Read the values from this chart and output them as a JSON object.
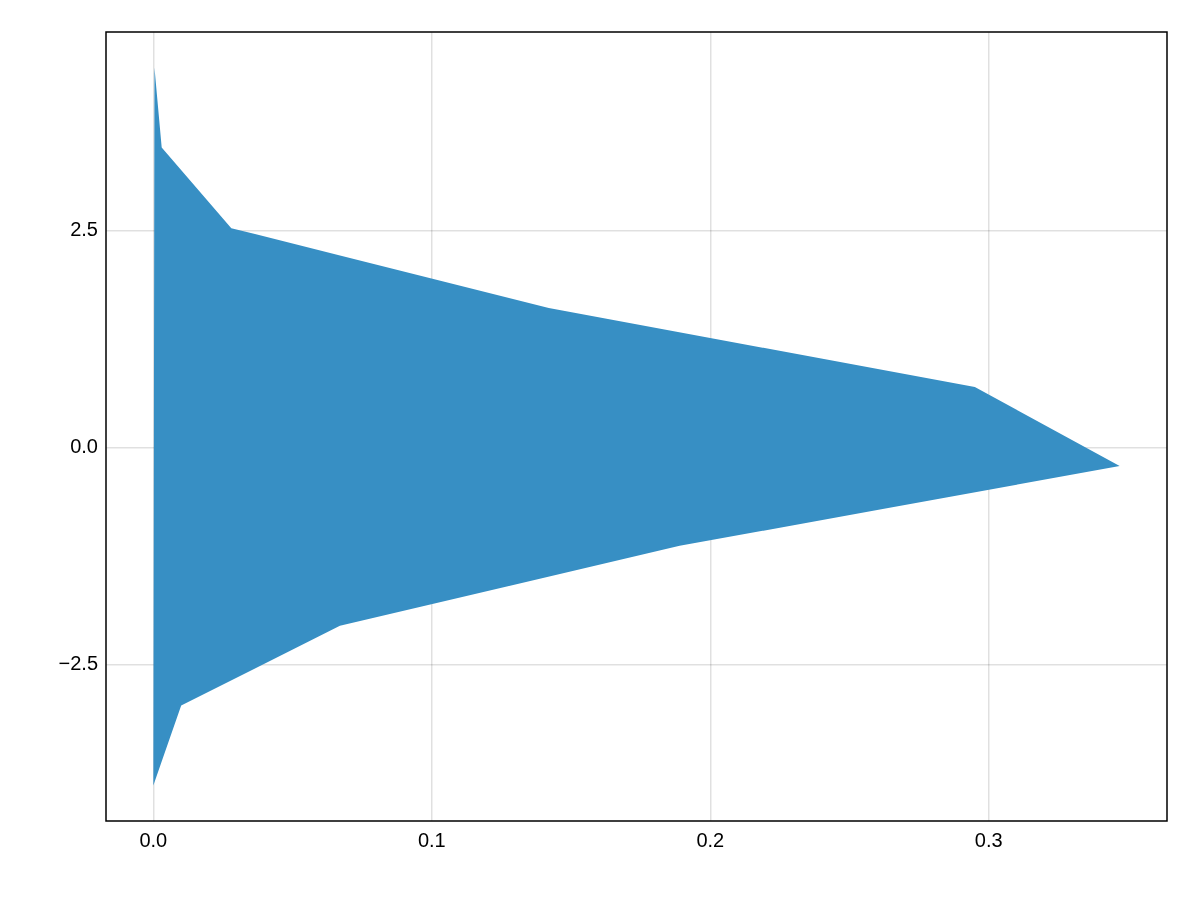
{
  "chart_data": {
    "type": "area",
    "orientation": "horizontal",
    "color": "#378fc4",
    "grid": true,
    "x": [
      4.38,
      3.46,
      2.53,
      1.61,
      0.7,
      -0.21,
      -1.13,
      -2.05,
      -2.97,
      -3.89
    ],
    "values": [
      0.0004,
      0.003,
      0.028,
      0.142,
      0.295,
      0.347,
      0.189,
      0.067,
      0.01,
      0.0
    ],
    "xlim": [
      -0.017,
      0.364
    ],
    "ylim": [
      -4.3,
      4.79
    ],
    "xticks": [
      {
        "value": 0,
        "label": "0.0"
      },
      {
        "value": 0.1,
        "label": "0.1"
      },
      {
        "value": 0.2,
        "label": "0.2"
      },
      {
        "value": 0.3,
        "label": "0.3"
      }
    ],
    "yticks": [
      {
        "value": -2.5,
        "label": "−2.5"
      },
      {
        "value": 0,
        "label": "0.0"
      },
      {
        "value": 2.5,
        "label": "2.5"
      }
    ]
  }
}
